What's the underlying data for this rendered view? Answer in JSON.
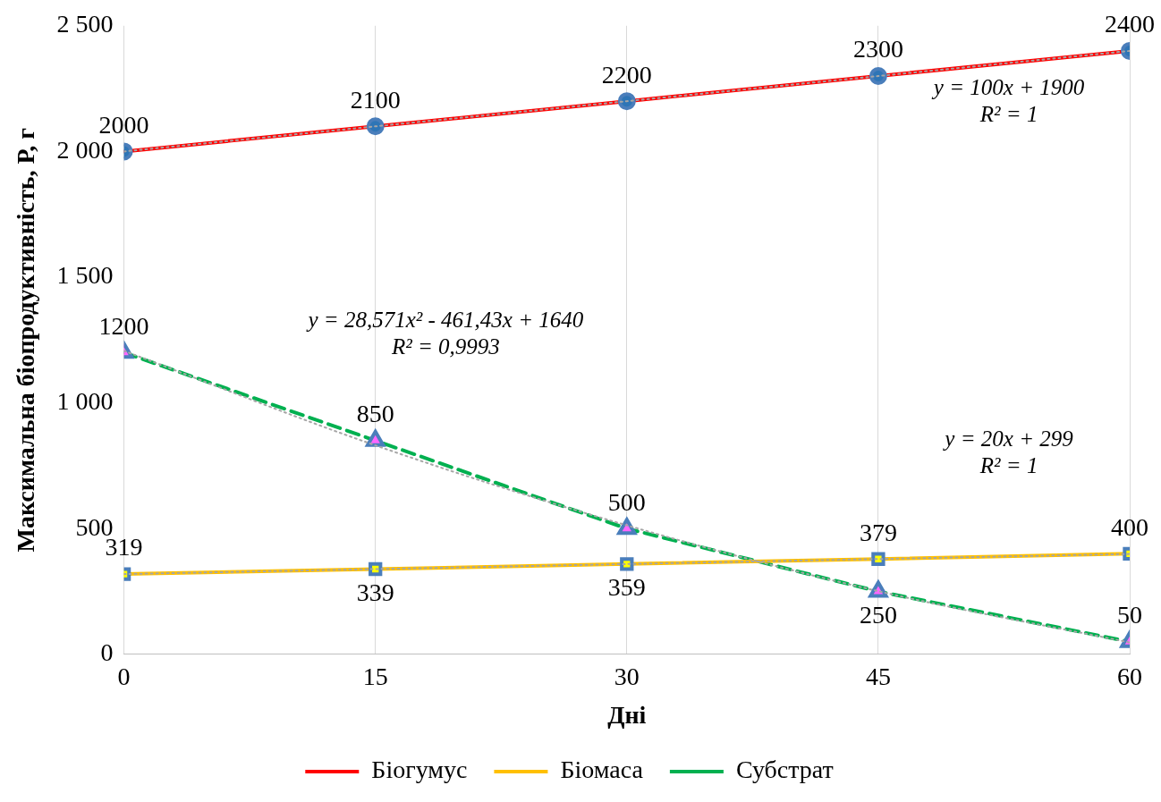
{
  "chart_data": {
    "type": "line",
    "xlabel": "Дні",
    "ylabel": "Максимальна біопродуктивність, Р, г",
    "x": [
      0,
      15,
      30,
      45,
      60
    ],
    "xlim": [
      0,
      60
    ],
    "xticks": [
      0,
      15,
      30,
      45,
      60
    ],
    "ylim": [
      0,
      2500
    ],
    "yticks": [
      {
        "value": 0,
        "label": "0"
      },
      {
        "value": 500,
        "label": "500"
      },
      {
        "value": 1000,
        "label": "1 000"
      },
      {
        "value": 1500,
        "label": "1 500"
      },
      {
        "value": 2000,
        "label": "2 000"
      },
      {
        "value": 2500,
        "label": "2 500"
      }
    ],
    "grid": "x",
    "legend": "bottom",
    "series": [
      {
        "name": "Біогумус",
        "color": "#ff0000",
        "colors": [
          "#2e75b6",
          "#2e75b6",
          "#2e75b6",
          "#2e75b6",
          "#2e75b6"
        ],
        "marker": "circle",
        "line_style": "solid",
        "values": [
          2000,
          2100,
          2200,
          2300,
          2400
        ],
        "value_labels": [
          "2000",
          "2100",
          "2200",
          "2300",
          "2400"
        ]
      },
      {
        "name": "Біомаса",
        "color": "#ffc000",
        "colors": [
          "#ffff00",
          "#ffff00",
          "#ffff00",
          "#ffff00",
          "#ffff00"
        ],
        "marker": "square",
        "line_style": "solid",
        "values": [
          319,
          339,
          359,
          379,
          400
        ],
        "value_labels": [
          "319",
          "339",
          "359",
          "379",
          "400"
        ]
      },
      {
        "name": "Субстрат",
        "color": "#00b050",
        "colors": [
          "#ff66ff",
          "#ff66ff",
          "#ff66ff",
          "#ff66ff",
          "#ff66ff"
        ],
        "marker": "triangle",
        "line_style": "dashed",
        "values": [
          1200,
          850,
          500,
          250,
          50
        ],
        "value_labels": [
          "1200",
          "850",
          "500",
          "250",
          "50"
        ]
      },
      {
        "type": "line",
        "color": "#a6a6a6",
        "marker": "none",
        "line_style": "dotted",
        "x": [
          0,
          15,
          30,
          45,
          60
        ],
        "values": [
          2000,
          2100,
          2200,
          2300,
          2400
        ]
      },
      {
        "type": "line",
        "color": "#a6a6a6",
        "marker": "none",
        "line_style": "dotted",
        "x": [
          0,
          15,
          30,
          45,
          60
        ],
        "values": [
          319,
          339,
          359,
          379,
          399
        ]
      },
      {
        "type": "line",
        "color": "#a6a6a6",
        "marker": "none",
        "line_style": "dotted",
        "x": [
          0,
          15,
          30,
          45,
          60
        ],
        "values": [
          1207,
          831,
          513,
          251,
          47
        ]
      }
    ],
    "annotations": [
      "y = 100x + 1900\nR² = 1",
      "y = 28,571x² - 461,43x + 1640\nR² = 0,9993",
      "y = 20x + 299\nR² = 1"
    ]
  }
}
